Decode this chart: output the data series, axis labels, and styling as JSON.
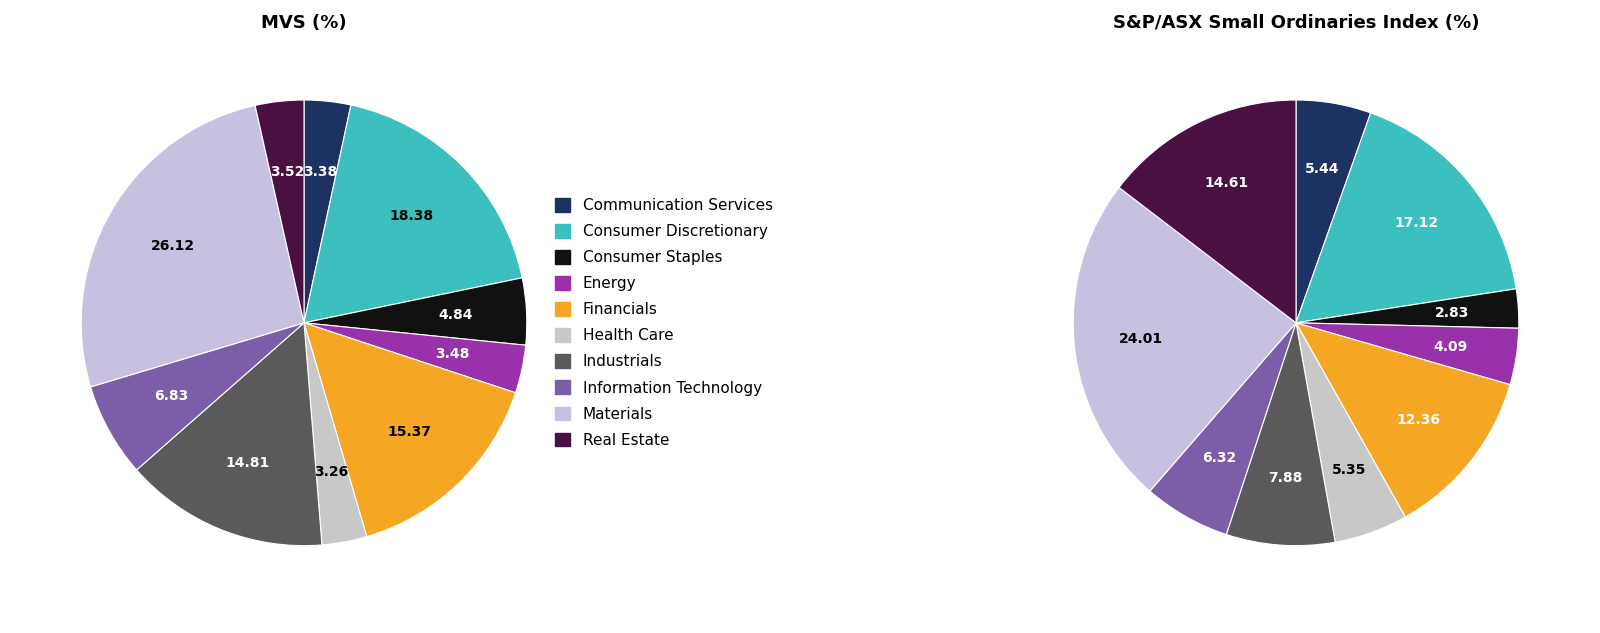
{
  "title_left": "MVS (%)",
  "title_right": "S&P/ASX Small Ordinaries Index (%)",
  "sectors": [
    "Communication Services",
    "Consumer Discretionary",
    "Consumer Staples",
    "Energy",
    "Financials",
    "Health Care",
    "Industrials",
    "Information Technology",
    "Materials",
    "Real Estate"
  ],
  "colors": [
    "#1c3263",
    "#3bbfbf",
    "#111111",
    "#9932aa",
    "#f5a623",
    "#c8c8c8",
    "#5a5a5a",
    "#7b5ea7",
    "#c8c0e0",
    "#4a1042"
  ],
  "mvs_values": [
    3.38,
    18.38,
    4.84,
    3.48,
    15.37,
    3.26,
    14.81,
    6.83,
    26.12,
    3.52
  ],
  "asx_values": [
    5.44,
    17.12,
    2.83,
    4.09,
    12.36,
    5.35,
    7.88,
    6.32,
    24.01,
    14.61
  ],
  "mvs_label_colors": [
    "white",
    "black",
    "white",
    "white",
    "black",
    "black",
    "white",
    "white",
    "black",
    "white"
  ],
  "asx_label_colors": [
    "white",
    "white",
    "white",
    "white",
    "white",
    "black",
    "white",
    "white",
    "black",
    "white"
  ],
  "background_color": "#ffffff",
  "title_fontsize": 13,
  "label_fontsize": 10,
  "legend_fontsize": 11
}
